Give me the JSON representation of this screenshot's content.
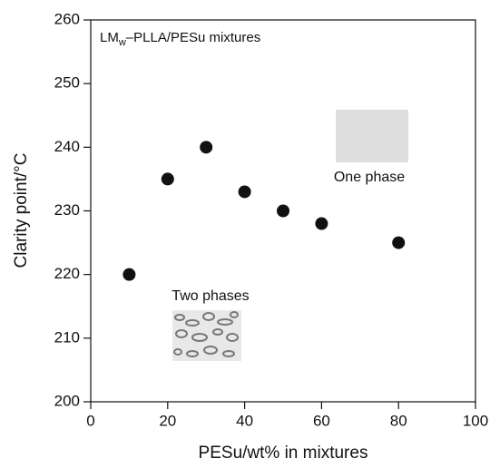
{
  "chart_data": {
    "type": "scatter",
    "title": {
      "main": "LM",
      "subscript": "w",
      "rest": "–PLLA/PESu mixtures"
    },
    "x_label": "PESu/wt% in mixtures",
    "y_label": "Clarity point/°C",
    "annotations": [
      "One phase",
      "Two phases"
    ],
    "series": [
      {
        "color": "#111111",
        "x": [
          10,
          20,
          30,
          40,
          50,
          60,
          80
        ],
        "values": [
          220,
          235,
          240,
          233,
          230,
          228,
          225
        ]
      }
    ],
    "xlim": [
      0,
      100
    ],
    "xticks": [
      0,
      20,
      40,
      60,
      80,
      100
    ],
    "ylim": [
      200,
      260
    ],
    "yticks": [
      200,
      210,
      220,
      230,
      240,
      250,
      260
    ]
  }
}
